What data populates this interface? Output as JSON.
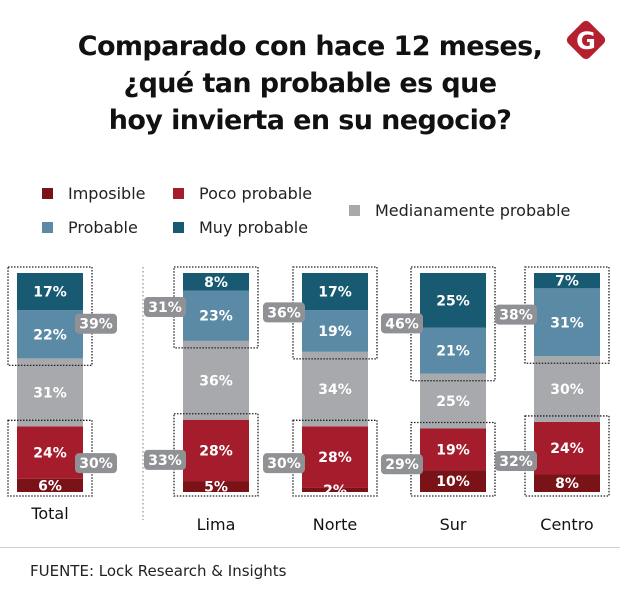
{
  "title_lines": [
    "Comparado con hace 12 meses,",
    "¿qué tan probable es que",
    "hoy invierta en su negocio?"
  ],
  "logo": {
    "letter": "G",
    "color": "#b51f2e"
  },
  "legend": [
    {
      "label": "Imposible",
      "color": "#7a1318"
    },
    {
      "label": "Poco probable",
      "color": "#a51c2c"
    },
    {
      "label": "Probable",
      "color": "#5b8aa6"
    },
    {
      "label": "Muy probable",
      "color": "#195a73"
    },
    {
      "label": "Medianamente probable",
      "color": "#a7a9ac"
    }
  ],
  "badge_color": "#8f9194",
  "source": "FUENTE: Lock Research & Insights",
  "chart_data": {
    "type": "bar",
    "stacked": true,
    "orientation": "vertical",
    "title": "Comparado con hace 12 meses, ¿qué tan probable es que hoy invierta en su negocio?",
    "categories": [
      "Total",
      "Lima",
      "Norte",
      "Sur",
      "Centro"
    ],
    "unit": "%",
    "series": [
      {
        "name": "Imposible",
        "color": "#7a1318",
        "values": [
          6,
          5,
          2,
          10,
          8
        ]
      },
      {
        "name": "Poco probable",
        "color": "#a51c2c",
        "values": [
          24,
          28,
          28,
          19,
          24
        ]
      },
      {
        "name": "Medianamente probable",
        "color": "#a7a9ac",
        "values": [
          31,
          36,
          34,
          25,
          30
        ]
      },
      {
        "name": "Probable",
        "color": "#5b8aa6",
        "values": [
          22,
          23,
          19,
          21,
          31
        ]
      },
      {
        "name": "Muy probable",
        "color": "#195a73",
        "values": [
          17,
          8,
          17,
          25,
          7
        ]
      }
    ],
    "group_totals": {
      "probable_plus_muy_probable": [
        39,
        31,
        36,
        46,
        38
      ],
      "imposible_plus_poco_probable": [
        30,
        33,
        30,
        29,
        32
      ]
    },
    "legend_position": "top",
    "grid": false,
    "ylim": [
      0,
      100
    ]
  }
}
